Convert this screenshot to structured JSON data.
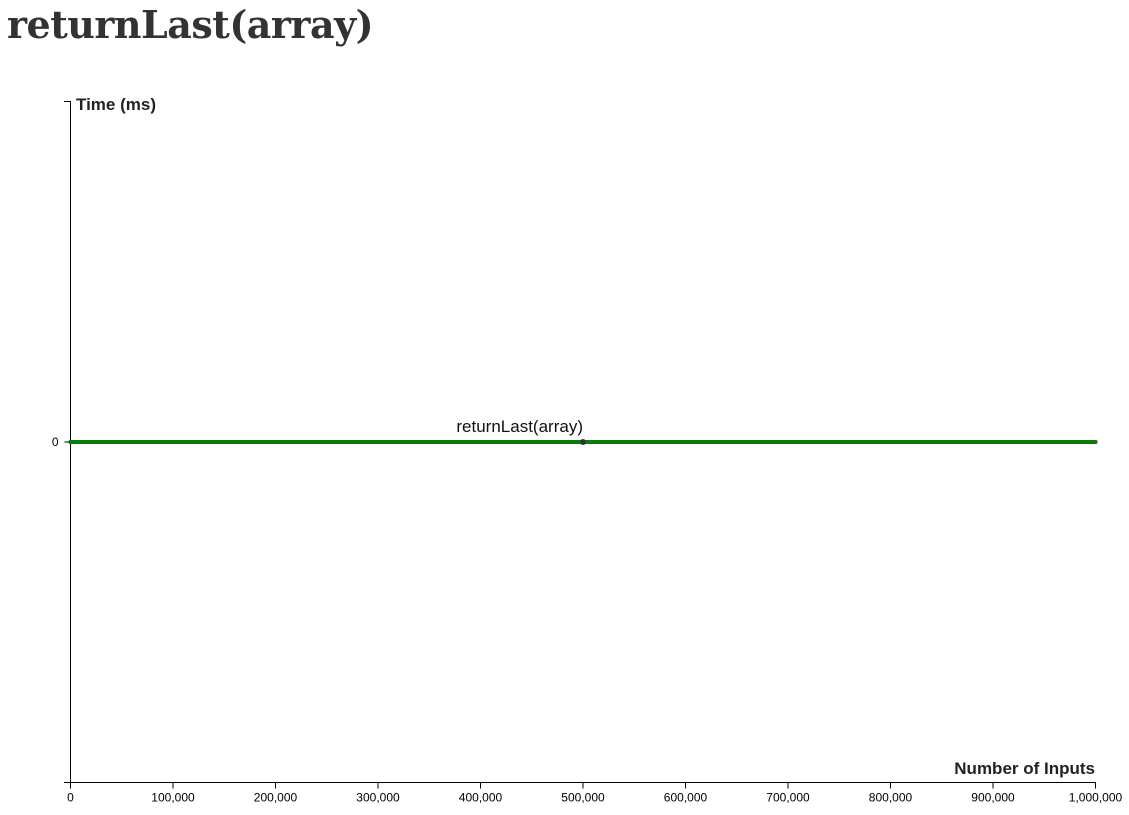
{
  "page": {
    "title": "returnLast(array)"
  },
  "chart_data": {
    "type": "line",
    "x": [
      0,
      100000,
      200000,
      300000,
      400000,
      500000,
      600000,
      700000,
      800000,
      900000,
      1000000
    ],
    "series": [
      {
        "name": "returnLast(array)",
        "color": "#0a7a0a",
        "values": [
          0,
          0,
          0,
          0,
          0,
          0,
          0,
          0,
          0,
          0,
          0
        ]
      }
    ],
    "highlight_point": {
      "x": 500000,
      "y": 0
    },
    "xlabel": "Number of Inputs",
    "ylabel": "Time (ms)",
    "xlim": [
      0,
      1000000
    ],
    "ylim": [
      -1,
      1
    ],
    "x_ticks": [
      0,
      100000,
      200000,
      300000,
      400000,
      500000,
      600000,
      700000,
      800000,
      900000,
      1000000
    ],
    "x_tick_labels": [
      "0",
      "100,000",
      "200,000",
      "300,000",
      "400,000",
      "500,000",
      "600,000",
      "700,000",
      "800,000",
      "900,000",
      "1,000,000"
    ],
    "y_ticks": [
      0
    ],
    "y_tick_labels": [
      "0"
    ],
    "grid": false
  }
}
